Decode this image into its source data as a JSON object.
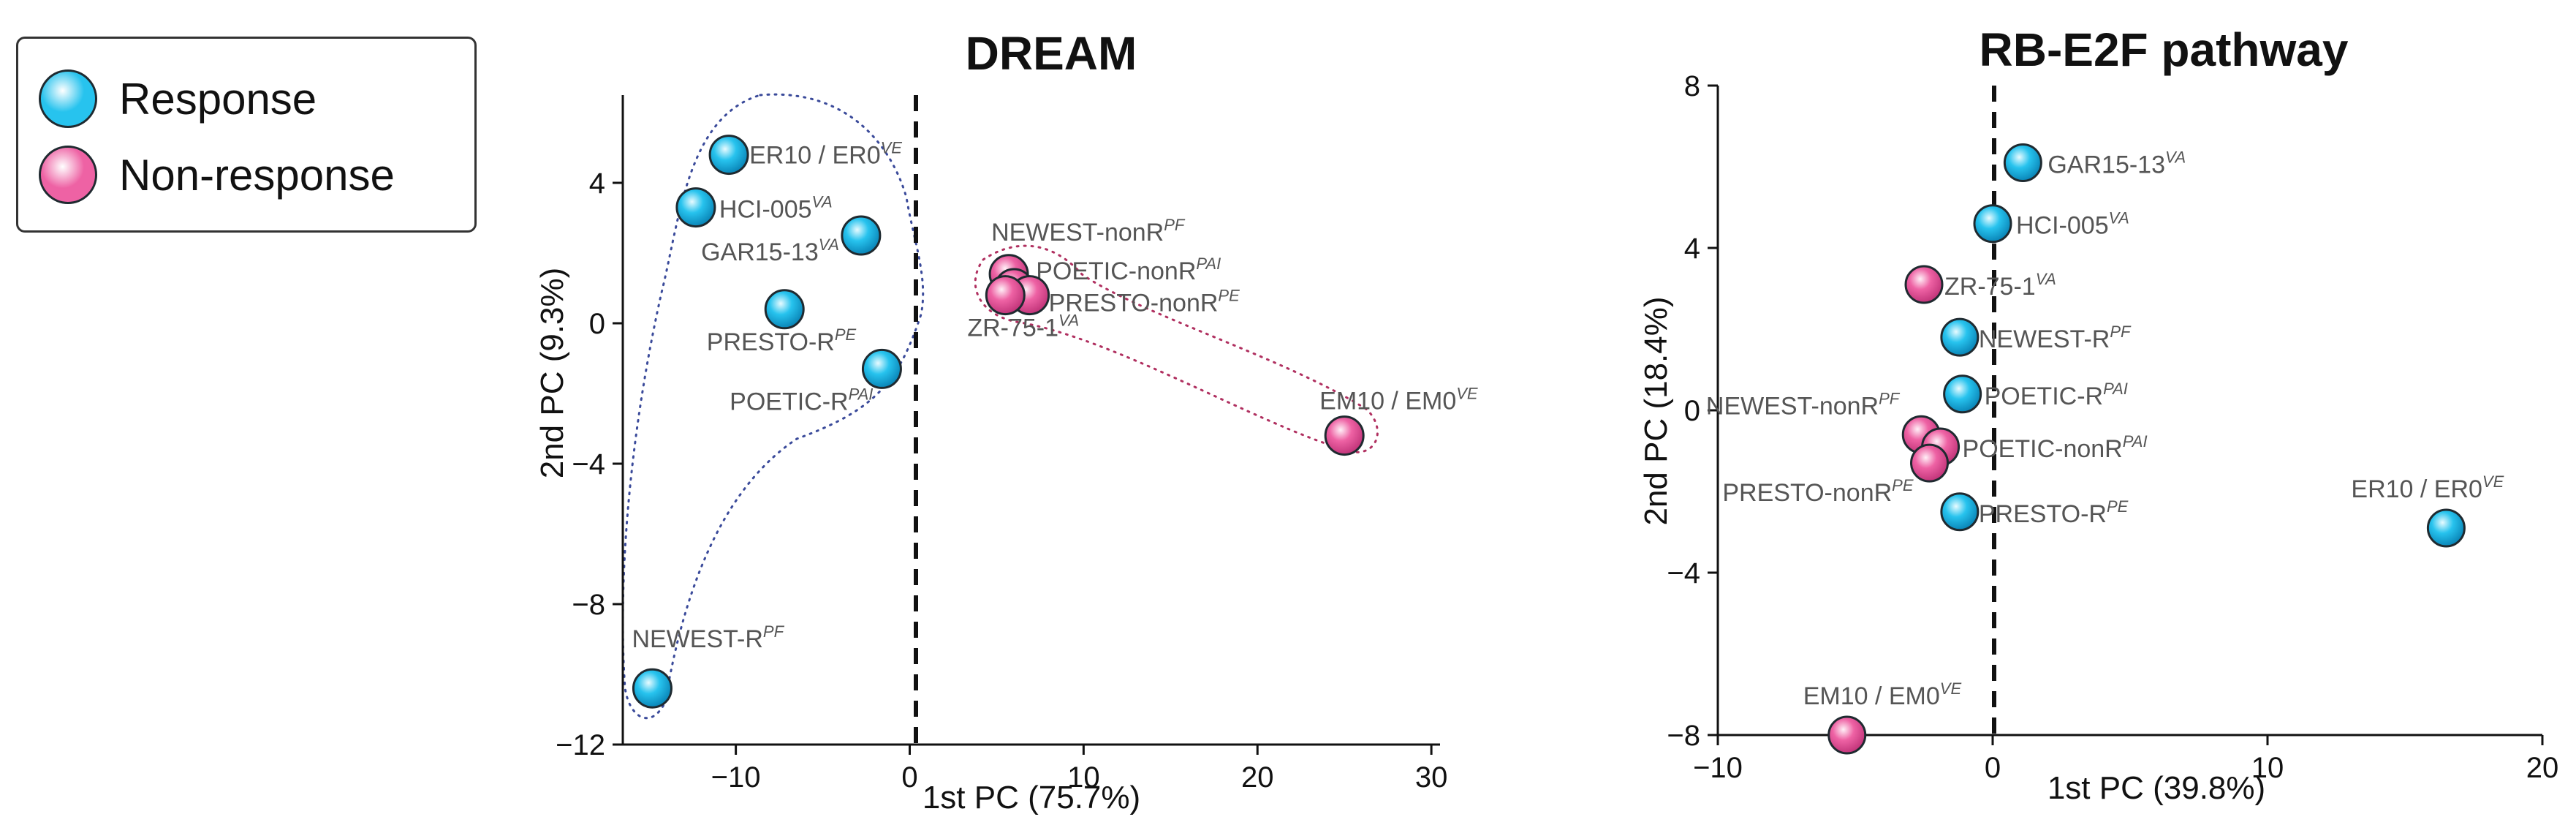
{
  "legend": {
    "items": [
      {
        "label": "Response",
        "series": "response"
      },
      {
        "label": "Non-response",
        "series": "nonresponse"
      }
    ]
  },
  "colors": {
    "response": "#27c3ee",
    "nonresponse": "#ee62a4",
    "outline": "#1f2a30",
    "axis": "#111111",
    "hull_blue": "#3a4a9a",
    "hull_pink": "#b03060",
    "label": "#555555"
  },
  "chart_data": [
    {
      "type": "scatter",
      "title": "DREAM",
      "xlabel": "1st PC (75.7%)",
      "ylabel": "2nd PC (9.3%)",
      "xlim": [
        -16.5,
        30.5
      ],
      "ylim": [
        -12,
        6.5
      ],
      "xticks": [
        -10,
        0,
        10,
        20,
        30
      ],
      "yticks": [
        -12,
        -8,
        -4,
        0,
        4
      ],
      "vertical_dashed_line_at": 0,
      "grid": false,
      "points": [
        {
          "x": -10.4,
          "y": 4.8,
          "label": "ER10 / ER0",
          "sup": "VE",
          "group": "response"
        },
        {
          "x": -12.3,
          "y": 3.3,
          "label": "HCI-005",
          "sup": "VA",
          "group": "response"
        },
        {
          "x": -2.8,
          "y": 2.5,
          "label": "GAR15-13",
          "sup": "VA",
          "group": "response"
        },
        {
          "x": -7.2,
          "y": 0.4,
          "label": "PRESTO-R",
          "sup": "PE",
          "group": "response"
        },
        {
          "x": -1.6,
          "y": -1.3,
          "label": "POETIC-R",
          "sup": "PAI",
          "group": "response"
        },
        {
          "x": -14.8,
          "y": -10.4,
          "label": "NEWEST-R",
          "sup": "PF",
          "group": "response"
        },
        {
          "x": 5.7,
          "y": 1.4,
          "label": "NEWEST-nonR",
          "sup": "PF",
          "group": "nonresponse"
        },
        {
          "x": 6.0,
          "y": 1.0,
          "label": "POETIC-nonR",
          "sup": "PAI",
          "group": "nonresponse"
        },
        {
          "x": 6.9,
          "y": 0.8,
          "label": "PRESTO-nonR",
          "sup": "PE",
          "group": "nonresponse"
        },
        {
          "x": 5.5,
          "y": 0.8,
          "label": "ZR-75-1",
          "sup": "VA",
          "group": "nonresponse"
        },
        {
          "x": 25.0,
          "y": -3.2,
          "label": "EM10 / EM0",
          "sup": "VE",
          "group": "nonresponse"
        }
      ]
    },
    {
      "type": "scatter",
      "title": "RB-E2F pathway",
      "xlabel": "1st PC (39.8%)",
      "ylabel": "2nd PC (18.4%)",
      "xlim": [
        -10,
        20
      ],
      "ylim": [
        -8,
        8
      ],
      "xticks": [
        -10,
        0,
        10,
        20
      ],
      "yticks": [
        -8,
        -4,
        0,
        4,
        8
      ],
      "vertical_dashed_line_at": 0,
      "grid": false,
      "points": [
        {
          "x": 1.1,
          "y": 6.1,
          "label": "GAR15-13",
          "sup": "VA",
          "group": "response"
        },
        {
          "x": 0.0,
          "y": 4.6,
          "label": "HCI-005",
          "sup": "VA",
          "group": "response"
        },
        {
          "x": -1.2,
          "y": 1.8,
          "label": "NEWEST-R",
          "sup": "PF",
          "group": "response"
        },
        {
          "x": -1.1,
          "y": 0.4,
          "label": "POETIC-R",
          "sup": "PAI",
          "group": "response"
        },
        {
          "x": -1.2,
          "y": -2.5,
          "label": "PRESTO-R",
          "sup": "PE",
          "group": "response"
        },
        {
          "x": 16.5,
          "y": -2.9,
          "label": "ER10 / ER0",
          "sup": "VE",
          "group": "response"
        },
        {
          "x": -2.5,
          "y": 3.1,
          "label": "ZR-75-1",
          "sup": "VA",
          "group": "nonresponse"
        },
        {
          "x": -2.6,
          "y": -0.6,
          "label": "NEWEST-nonR",
          "sup": "PF",
          "group": "nonresponse"
        },
        {
          "x": -1.9,
          "y": -0.9,
          "label": "POETIC-nonR",
          "sup": "PAI",
          "group": "nonresponse"
        },
        {
          "x": -2.3,
          "y": -1.3,
          "label": "PRESTO-nonR",
          "sup": "PE",
          "group": "nonresponse"
        },
        {
          "x": -5.3,
          "y": -8.0,
          "label": "EM10 / EM0",
          "sup": "VE",
          "group": "nonresponse"
        }
      ]
    }
  ]
}
